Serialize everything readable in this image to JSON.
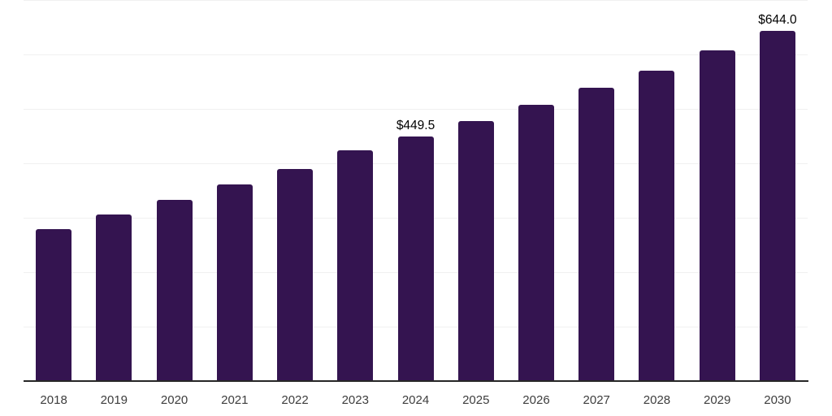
{
  "colors": {
    "background": "#ffffff",
    "bar": "#341450",
    "gridline": "#f0f0f0",
    "axis_line": "#262626",
    "data_label": "#000000",
    "tick_label": "#3d3d3d"
  },
  "chart_data": {
    "type": "bar",
    "title": "",
    "xlabel": "",
    "ylabel": "",
    "categories": [
      "2018",
      "2019",
      "2020",
      "2021",
      "2022",
      "2023",
      "2024",
      "2025",
      "2026",
      "2027",
      "2028",
      "2029",
      "2030"
    ],
    "values": [
      278.9,
      305.9,
      333.6,
      361.5,
      389.4,
      423.9,
      449.5,
      477.6,
      507.4,
      538.7,
      570.4,
      607.6,
      644.0
    ],
    "bar_labels": [
      "",
      "",
      "",
      "",
      "",
      "",
      "$449.5",
      "",
      "",
      "",
      "",
      "",
      "$644.0"
    ],
    "ylim": [
      0,
      700
    ],
    "gridline_values": [
      100,
      200,
      300,
      400,
      500,
      600,
      700
    ],
    "grid": "horizontal-only",
    "legend": "none",
    "y_axis_labels_visible": false
  }
}
